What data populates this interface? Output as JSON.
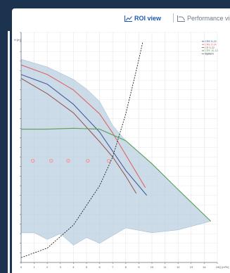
{
  "toolbar": {
    "roi_label": "ROI view",
    "performance_label": "Performance view"
  },
  "chart_data": {
    "type": "line",
    "title": "",
    "xlabel": "Q [m³/h]",
    "ylabel": "H [m]",
    "xlim": [
      0,
      15
    ],
    "ylim": [
      0,
      24
    ],
    "x_ticks": [
      "0",
      "1",
      "2",
      "3",
      "4",
      "5",
      "6",
      "7",
      "8",
      "9",
      "10",
      "11",
      "12",
      "13",
      "14",
      "15"
    ],
    "grid": true,
    "legend_position": "top-right",
    "series": [
      {
        "name": "CRE 5-22",
        "color": "#4a5a9a",
        "points": [
          [
            0,
            19.6
          ],
          [
            2,
            18.6
          ],
          [
            4,
            16.5
          ],
          [
            6,
            13.6
          ],
          [
            8,
            9.6
          ],
          [
            9.6,
            7.0
          ]
        ]
      },
      {
        "name": "CRE 5-24",
        "color": "#e06666",
        "points": [
          [
            0,
            20.6
          ],
          [
            2,
            19.6
          ],
          [
            4,
            18.0
          ],
          [
            6,
            15.5
          ],
          [
            7,
            13.5
          ],
          [
            9.5,
            7.8
          ]
        ]
      },
      {
        "name": "CR 5-32",
        "color": "#9a5a5a",
        "points": [
          [
            0,
            19.2
          ],
          [
            2,
            17.6
          ],
          [
            4,
            15.6
          ],
          [
            6,
            12.6
          ],
          [
            7,
            11.0
          ],
          [
            8,
            9.0
          ],
          [
            8.8,
            7.2
          ]
        ]
      },
      {
        "name": "CRE 10-12",
        "color": "#5aa05a",
        "points": [
          [
            0,
            13.9
          ],
          [
            2,
            13.9
          ],
          [
            4,
            14.0
          ],
          [
            6,
            13.9
          ],
          [
            8,
            12.7
          ],
          [
            10,
            10.3
          ],
          [
            12,
            7.6
          ],
          [
            14.5,
            4.3
          ]
        ]
      },
      {
        "name": "System",
        "color": "#222222",
        "dashed": true,
        "points": [
          [
            0,
            0.5
          ],
          [
            2,
            1.5
          ],
          [
            4,
            3.9
          ],
          [
            6,
            8.0
          ],
          [
            7,
            11.0
          ],
          [
            8,
            15.5
          ],
          [
            8.8,
            20.0
          ],
          [
            9.3,
            23.0
          ]
        ]
      }
    ],
    "roi_region": [
      [
        0,
        21.2
      ],
      [
        2,
        20.4
      ],
      [
        4,
        19.1
      ],
      [
        5,
        18.1
      ],
      [
        6,
        16.8
      ],
      [
        7,
        14.3
      ],
      [
        8,
        12.7
      ],
      [
        10,
        10.3
      ],
      [
        12,
        7.6
      ],
      [
        14.5,
        4.3
      ],
      [
        12,
        3.4
      ],
      [
        10,
        3.1
      ],
      [
        8,
        3.6
      ],
      [
        6,
        2.0
      ],
      [
        5,
        2.6
      ],
      [
        4,
        1.8
      ],
      [
        3,
        3.0
      ],
      [
        2,
        2.4
      ],
      [
        1,
        3.1
      ],
      [
        0,
        3.1
      ]
    ],
    "markers": [
      [
        0.9,
        10.6
      ],
      [
        2.3,
        10.6
      ],
      [
        3.6,
        10.6
      ],
      [
        5.1,
        10.6
      ],
      [
        6.7,
        10.6
      ]
    ]
  }
}
